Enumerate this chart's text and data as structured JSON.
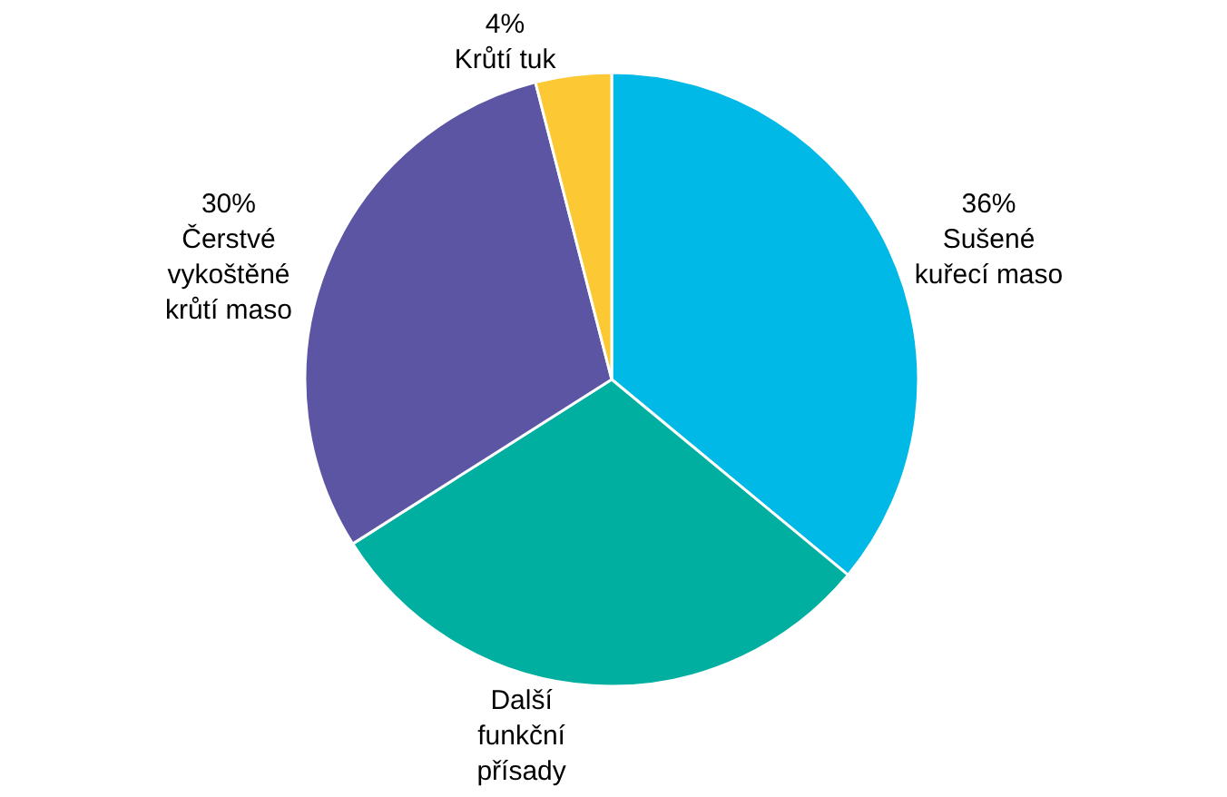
{
  "chart_data": {
    "type": "pie",
    "categories": [
      "Sušené kuřecí maso",
      "Další funkční přísady",
      "Čerstvé vykoštěné krůtí maso",
      "Krůtí tuk"
    ],
    "values": [
      36,
      30,
      30,
      4
    ],
    "value_labels": [
      "36%",
      null,
      "30%",
      "4%"
    ],
    "colors": [
      "#00b9e7",
      "#00afa0",
      "#5b55a3",
      "#fcc934"
    ],
    "legend": false
  }
}
